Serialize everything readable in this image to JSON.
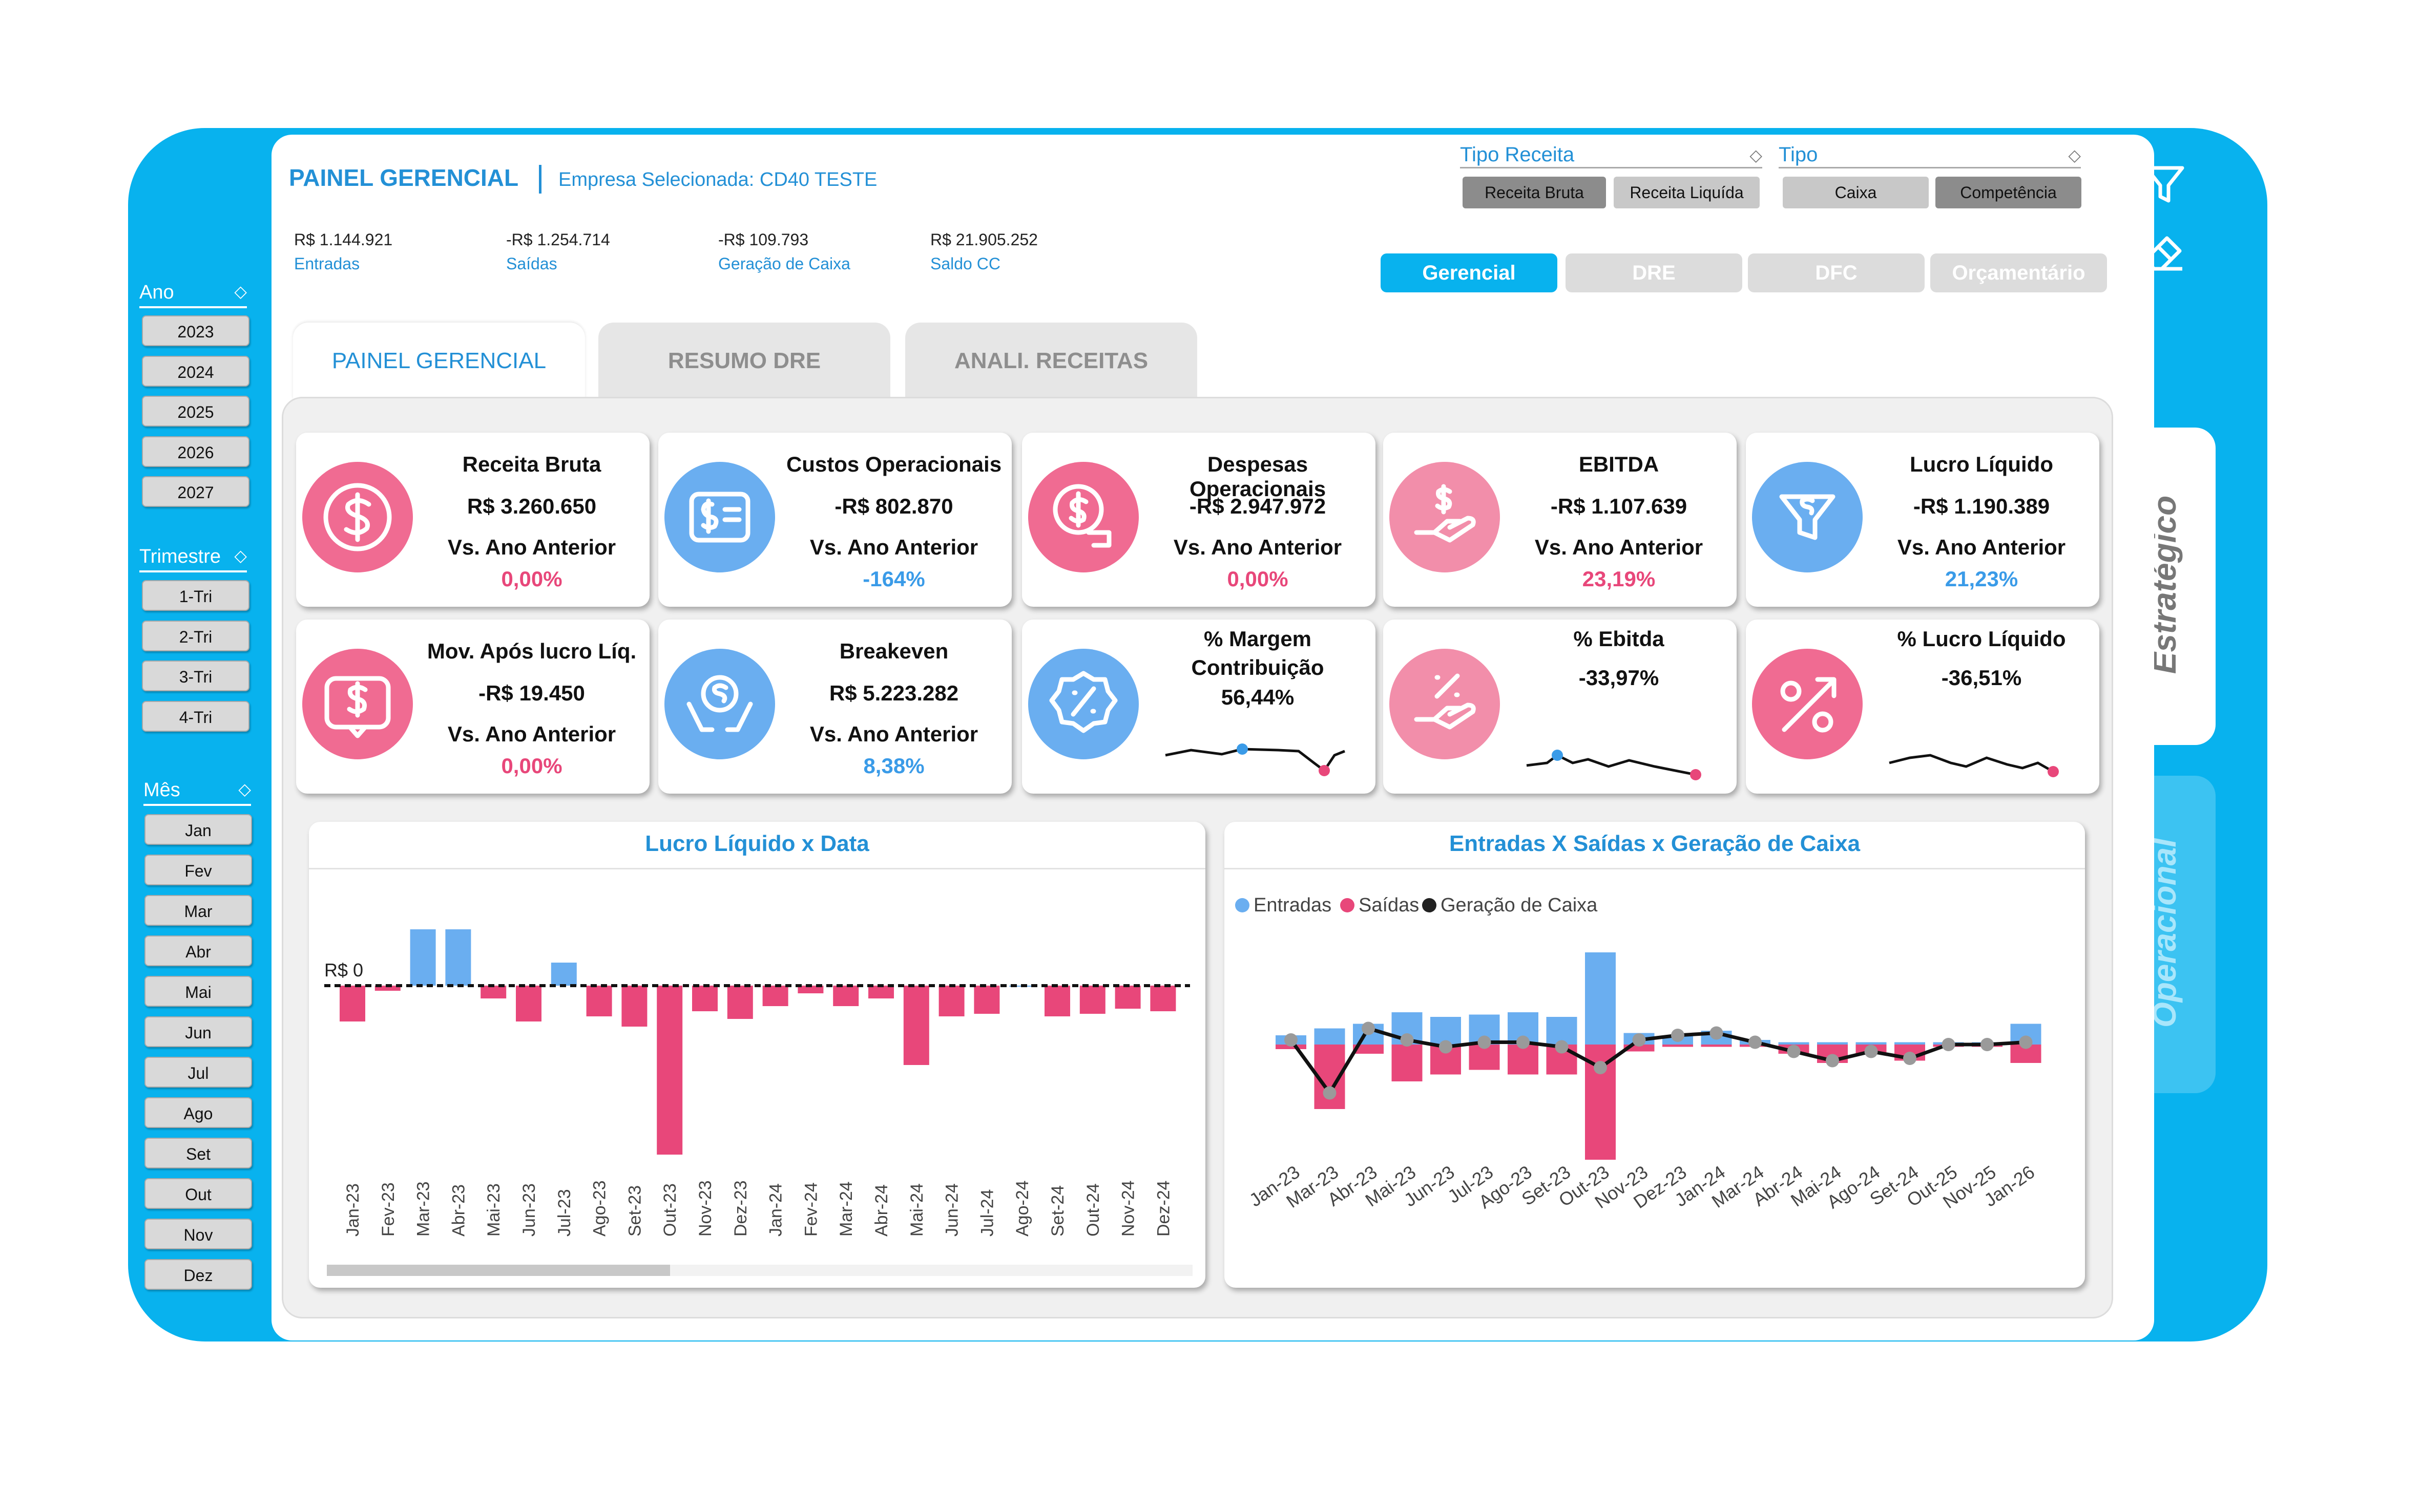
{
  "header": {
    "title": "PAINEL GERENCIAL",
    "subtitle": "Empresa Selecionada: CD40 TESTE"
  },
  "summary": [
    {
      "value": "R$ 1.144.921",
      "label": "Entradas"
    },
    {
      "value": "-R$ 1.254.714",
      "label": "Saídas"
    },
    {
      "value": "-R$ 109.793",
      "label": "Geração de Caixa"
    },
    {
      "value": "R$ 21.905.252",
      "label": "Saldo CC"
    }
  ],
  "slicers": {
    "tipo_receita": {
      "label": "Tipo Receita",
      "options": [
        "Receita Bruta",
        "Receita Liquída"
      ]
    },
    "tipo": {
      "label": "Tipo",
      "options": [
        "Caixa",
        "Competência"
      ]
    }
  },
  "nav": [
    "Gerencial",
    "DRE",
    "DFC",
    "Orçamentário"
  ],
  "tabs": [
    "PAINEL GERENCIAL",
    "RESUMO DRE",
    "ANALI. RECEITAS"
  ],
  "sidebar": {
    "ano": {
      "label": "Ano",
      "items": [
        "2023",
        "2024",
        "2025",
        "2026",
        "2027"
      ]
    },
    "trimestre": {
      "label": "Trimestre",
      "items": [
        "1-Tri",
        "2-Tri",
        "3-Tri",
        "4-Tri"
      ]
    },
    "mes": {
      "label": "Mês",
      "items": [
        "Jan",
        "Fev",
        "Mar",
        "Abr",
        "Mai",
        "Jun",
        "Jul",
        "Ago",
        "Set",
        "Out",
        "Nov",
        "Dez"
      ]
    }
  },
  "cards_row1": [
    {
      "title": "Receita Bruta",
      "value": "R$ 3.260.650",
      "cmp": "Vs. Ano Anterior",
      "pct": "0,00%",
      "color": "#f06b92",
      "icon": "dollar-coin-icon"
    },
    {
      "title": "Custos Operacionais",
      "value": "-R$ 802.870",
      "cmp": "Vs. Ano Anterior",
      "pct": "-164%",
      "color": "#6aaef0",
      "icon": "invoice-icon"
    },
    {
      "title": "Despesas Operacionais",
      "value": "-R$ 2.947.972",
      "cmp": "Vs. Ano Anterior",
      "pct": "0,00%",
      "color": "#f06b92",
      "icon": "expense-icon"
    },
    {
      "title": "EBITDA",
      "value": "-R$ 1.107.639",
      "cmp": "Vs. Ano Anterior",
      "pct": "23,19%",
      "color": "#f28eaa",
      "icon": "hand-dollar-icon"
    },
    {
      "title": "Lucro Líquido",
      "value": "-R$ 1.190.389",
      "cmp": "Vs. Ano Anterior",
      "pct": "21,23%",
      "color": "#6aaef0",
      "icon": "funnel-dollar-icon"
    }
  ],
  "cards_row2": [
    {
      "title": "Mov. Após lucro Líq.",
      "value": "-R$ 19.450",
      "cmp": "Vs. Ano Anterior",
      "pct": "0,00%",
      "color": "#f06b92",
      "icon": "chat-dollar-icon"
    },
    {
      "title": "Breakeven",
      "value": "R$ 5.223.282",
      "cmp": "Vs. Ano Anterior",
      "pct": "8,38%",
      "color": "#6aaef0",
      "icon": "hands-dollar-icon"
    },
    {
      "title": "% Margem Contribuição",
      "value": "56,44%",
      "color": "#6aaef0",
      "icon": "percent-badge-icon"
    },
    {
      "title": "% Ebitda",
      "value": "-33,97%",
      "color": "#f28eaa",
      "icon": "hand-percent-icon"
    },
    {
      "title": "% Lucro Líquido",
      "value": "-36,51%",
      "color": "#f06b92",
      "icon": "percent-arrow-icon"
    }
  ],
  "right_tabs": [
    "Estratégico",
    "Operacional"
  ],
  "chart_data": [
    {
      "type": "bar",
      "title": "Lucro Líquido x Data",
      "reference_label": "R$ 0",
      "categories": [
        "Jan-23",
        "Fev-23",
        "Mar-23",
        "Abr-23",
        "Mai-23",
        "Jun-23",
        "Jul-23",
        "Ago-23",
        "Set-23",
        "Out-23",
        "Nov-23",
        "Dez-23",
        "Jan-24",
        "Fev-24",
        "Mar-24",
        "Abr-24",
        "Mai-24",
        "Jun-24",
        "Jul-24",
        "Ago-24",
        "Set-24",
        "Out-24",
        "Nov-24",
        "Dez-24"
      ],
      "values": [
        -70,
        -10,
        110,
        110,
        -25,
        -70,
        45,
        -60,
        -80,
        -330,
        -50,
        -65,
        -40,
        -15,
        -40,
        -25,
        -155,
        -60,
        -55,
        0,
        -60,
        -55,
        -45,
        -50
      ],
      "colors": {
        "positive": "#6aaef0",
        "negative": "#e8477a"
      }
    },
    {
      "type": "bar",
      "title": "Entradas X Saídas x Geração de Caixa",
      "legend": [
        "Entradas",
        "Saídas",
        "Geração de Caixa"
      ],
      "categories": [
        "Jan-23",
        "Mar-23",
        "Abr-23",
        "Mai-23",
        "Jun-23",
        "Jul-23",
        "Ago-23",
        "Set-23",
        "Out-23",
        "Nov-23",
        "Dez-23",
        "Jan-24",
        "Mar-24",
        "Abr-24",
        "Mai-24",
        "Ago-24",
        "Set-24",
        "Out-25",
        "Nov-25",
        "Jan-26"
      ],
      "series": [
        {
          "name": "Entradas",
          "values": [
            20,
            35,
            45,
            70,
            60,
            65,
            70,
            60,
            200,
            25,
            20,
            30,
            10,
            5,
            5,
            5,
            5,
            5,
            5,
            45
          ]
        },
        {
          "name": "Saídas",
          "values": [
            -10,
            -140,
            -20,
            -80,
            -65,
            -55,
            -65,
            -65,
            -250,
            -15,
            -5,
            -5,
            -5,
            -20,
            -40,
            -20,
            -35,
            -5,
            -5,
            -40
          ]
        },
        {
          "name": "Geração de Caixa",
          "values": [
            10,
            -105,
            35,
            10,
            -5,
            5,
            5,
            -5,
            -50,
            10,
            20,
            25,
            5,
            -15,
            -35,
            -15,
            -30,
            0,
            0,
            5
          ]
        }
      ],
      "colors": {
        "Entradas": "#6aaef0",
        "Saídas": "#e8477a",
        "Geração de Caixa": "#222222"
      }
    }
  ]
}
